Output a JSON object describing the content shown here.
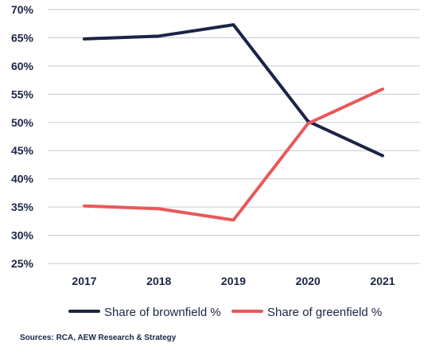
{
  "chart_data": {
    "type": "line",
    "categories": [
      "2017",
      "2018",
      "2019",
      "2020",
      "2021"
    ],
    "ylim": [
      25,
      70
    ],
    "yticks": [
      25,
      30,
      35,
      40,
      45,
      50,
      55,
      60,
      65,
      70
    ],
    "ytick_suffix": "%",
    "grid": true,
    "legend_position": "bottom",
    "series": [
      {
        "name": "Share of brownfield %",
        "color": "#1b2446",
        "values": [
          64.8,
          65.3,
          67.3,
          50.2,
          44.1
        ]
      },
      {
        "name": "Share of greenfield %",
        "color": "#e8585a",
        "values": [
          35.2,
          34.7,
          32.7,
          49.8,
          55.9
        ]
      }
    ]
  },
  "source_note": "Sources: RCA, AEW Research & Strategy"
}
